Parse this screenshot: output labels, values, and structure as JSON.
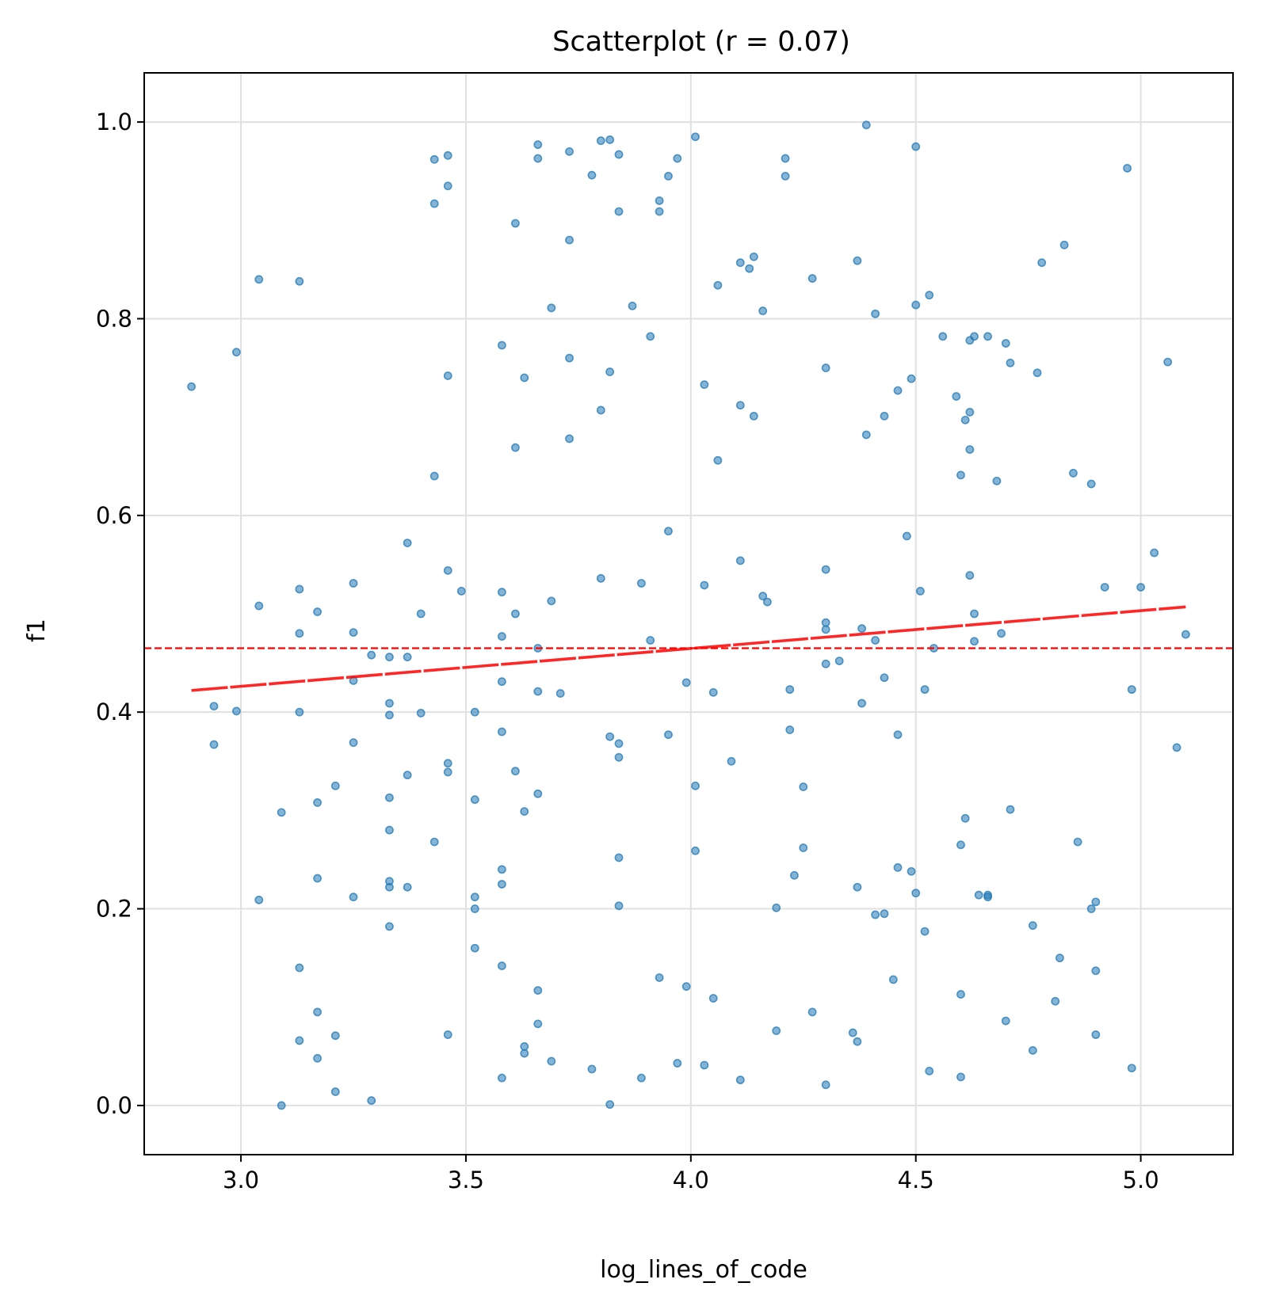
{
  "chart_data": {
    "type": "scatter",
    "title": "Scatterplot (r = 0.07)",
    "xlabel": "log_lines_of_code",
    "ylabel": "f1",
    "xlim": [
      2.785,
      5.205
    ],
    "ylim": [
      -0.05,
      1.05
    ],
    "xticks": [
      3.0,
      3.5,
      4.0,
      4.5,
      5.0
    ],
    "xtick_labels": [
      "3.0",
      "3.5",
      "4.0",
      "4.5",
      "5.0"
    ],
    "yticks": [
      0.0,
      0.2,
      0.4,
      0.6,
      0.8,
      1.0
    ],
    "ytick_labels": [
      "0.0",
      "0.2",
      "0.4",
      "0.6",
      "0.8",
      "1.0"
    ],
    "grid": true,
    "colors": {
      "points": "#1f77b4",
      "reference": "#ff0000",
      "axes": "#000000",
      "grid": "#e0e0e0"
    },
    "reference_lines": [
      {
        "kind": "horizontal_dashed",
        "y": 0.465
      }
    ],
    "trend_line": {
      "x": [
        2.89,
        5.1
      ],
      "y": [
        0.422,
        0.507
      ]
    },
    "points": [
      [
        2.89,
        0.731
      ],
      [
        2.94,
        0.406
      ],
      [
        2.94,
        0.367
      ],
      [
        2.99,
        0.766
      ],
      [
        2.99,
        0.401
      ],
      [
        3.04,
        0.84
      ],
      [
        3.04,
        0.508
      ],
      [
        3.04,
        0.209
      ],
      [
        3.09,
        0.298
      ],
      [
        3.09,
        0.0
      ],
      [
        3.13,
        0.838
      ],
      [
        3.13,
        0.525
      ],
      [
        3.13,
        0.48
      ],
      [
        3.13,
        0.4
      ],
      [
        3.13,
        0.14
      ],
      [
        3.13,
        0.066
      ],
      [
        3.17,
        0.502
      ],
      [
        3.17,
        0.308
      ],
      [
        3.17,
        0.231
      ],
      [
        3.17,
        0.095
      ],
      [
        3.17,
        0.048
      ],
      [
        3.21,
        0.325
      ],
      [
        3.21,
        0.071
      ],
      [
        3.21,
        0.014
      ],
      [
        3.25,
        0.531
      ],
      [
        3.25,
        0.481
      ],
      [
        3.25,
        0.432
      ],
      [
        3.25,
        0.369
      ],
      [
        3.25,
        0.212
      ],
      [
        3.29,
        0.458
      ],
      [
        3.29,
        0.005
      ],
      [
        3.33,
        0.456
      ],
      [
        3.33,
        0.409
      ],
      [
        3.33,
        0.397
      ],
      [
        3.33,
        0.313
      ],
      [
        3.33,
        0.28
      ],
      [
        3.33,
        0.228
      ],
      [
        3.33,
        0.222
      ],
      [
        3.33,
        0.182
      ],
      [
        3.37,
        0.572
      ],
      [
        3.37,
        0.456
      ],
      [
        3.37,
        0.336
      ],
      [
        3.37,
        0.222
      ],
      [
        3.4,
        0.5
      ],
      [
        3.4,
        0.399
      ],
      [
        3.43,
        0.962
      ],
      [
        3.43,
        0.917
      ],
      [
        3.43,
        0.64
      ],
      [
        3.43,
        0.268
      ],
      [
        3.46,
        0.966
      ],
      [
        3.46,
        0.935
      ],
      [
        3.46,
        0.742
      ],
      [
        3.46,
        0.544
      ],
      [
        3.46,
        0.348
      ],
      [
        3.46,
        0.339
      ],
      [
        3.46,
        0.072
      ],
      [
        3.49,
        0.523
      ],
      [
        3.52,
        0.4
      ],
      [
        3.52,
        0.311
      ],
      [
        3.52,
        0.212
      ],
      [
        3.52,
        0.2
      ],
      [
        3.52,
        0.16
      ],
      [
        3.58,
        0.773
      ],
      [
        3.58,
        0.522
      ],
      [
        3.58,
        0.477
      ],
      [
        3.58,
        0.431
      ],
      [
        3.58,
        0.38
      ],
      [
        3.58,
        0.24
      ],
      [
        3.58,
        0.225
      ],
      [
        3.58,
        0.142
      ],
      [
        3.58,
        0.028
      ],
      [
        3.61,
        0.897
      ],
      [
        3.61,
        0.669
      ],
      [
        3.61,
        0.5
      ],
      [
        3.61,
        0.34
      ],
      [
        3.63,
        0.74
      ],
      [
        3.63,
        0.299
      ],
      [
        3.63,
        0.06
      ],
      [
        3.63,
        0.053
      ],
      [
        3.66,
        0.977
      ],
      [
        3.66,
        0.963
      ],
      [
        3.66,
        0.465
      ],
      [
        3.66,
        0.421
      ],
      [
        3.66,
        0.317
      ],
      [
        3.66,
        0.117
      ],
      [
        3.66,
        0.083
      ],
      [
        3.69,
        0.811
      ],
      [
        3.69,
        0.513
      ],
      [
        3.69,
        0.045
      ],
      [
        3.71,
        0.419
      ],
      [
        3.73,
        0.97
      ],
      [
        3.73,
        0.88
      ],
      [
        3.73,
        0.76
      ],
      [
        3.73,
        0.678
      ],
      [
        3.78,
        0.946
      ],
      [
        3.78,
        0.037
      ],
      [
        3.8,
        0.981
      ],
      [
        3.8,
        0.707
      ],
      [
        3.8,
        0.536
      ],
      [
        3.82,
        0.982
      ],
      [
        3.82,
        0.746
      ],
      [
        3.82,
        0.375
      ],
      [
        3.82,
        0.001
      ],
      [
        3.84,
        0.967
      ],
      [
        3.84,
        0.909
      ],
      [
        3.84,
        0.368
      ],
      [
        3.84,
        0.354
      ],
      [
        3.84,
        0.252
      ],
      [
        3.84,
        0.203
      ],
      [
        3.87,
        0.813
      ],
      [
        3.89,
        0.531
      ],
      [
        3.89,
        0.028
      ],
      [
        3.91,
        0.782
      ],
      [
        3.91,
        0.473
      ],
      [
        3.93,
        0.92
      ],
      [
        3.93,
        0.909
      ],
      [
        3.93,
        0.13
      ],
      [
        3.95,
        0.945
      ],
      [
        3.95,
        0.584
      ],
      [
        3.95,
        0.377
      ],
      [
        3.97,
        0.963
      ],
      [
        3.97,
        0.043
      ],
      [
        3.99,
        0.43
      ],
      [
        3.99,
        0.121
      ],
      [
        4.01,
        0.985
      ],
      [
        4.01,
        0.325
      ],
      [
        4.01,
        0.259
      ],
      [
        4.03,
        0.733
      ],
      [
        4.03,
        0.529
      ],
      [
        4.03,
        0.041
      ],
      [
        4.05,
        0.42
      ],
      [
        4.05,
        0.109
      ],
      [
        4.06,
        0.834
      ],
      [
        4.06,
        0.656
      ],
      [
        4.09,
        0.35
      ],
      [
        4.11,
        0.857
      ],
      [
        4.11,
        0.712
      ],
      [
        4.11,
        0.554
      ],
      [
        4.11,
        0.026
      ],
      [
        4.13,
        0.851
      ],
      [
        4.14,
        0.863
      ],
      [
        4.14,
        0.701
      ],
      [
        4.16,
        0.808
      ],
      [
        4.16,
        0.518
      ],
      [
        4.17,
        0.512
      ],
      [
        4.19,
        0.201
      ],
      [
        4.19,
        0.076
      ],
      [
        4.21,
        0.963
      ],
      [
        4.21,
        0.945
      ],
      [
        4.22,
        0.423
      ],
      [
        4.22,
        0.382
      ],
      [
        4.23,
        0.234
      ],
      [
        4.25,
        0.324
      ],
      [
        4.25,
        0.262
      ],
      [
        4.27,
        0.841
      ],
      [
        4.27,
        0.095
      ],
      [
        4.3,
        0.75
      ],
      [
        4.3,
        0.545
      ],
      [
        4.3,
        0.491
      ],
      [
        4.3,
        0.484
      ],
      [
        4.3,
        0.449
      ],
      [
        4.3,
        0.021
      ],
      [
        4.33,
        0.452
      ],
      [
        4.36,
        0.074
      ],
      [
        4.37,
        0.859
      ],
      [
        4.37,
        0.222
      ],
      [
        4.37,
        0.065
      ],
      [
        4.38,
        0.485
      ],
      [
        4.38,
        0.409
      ],
      [
        4.39,
        0.997
      ],
      [
        4.39,
        0.682
      ],
      [
        4.41,
        0.805
      ],
      [
        4.41,
        0.473
      ],
      [
        4.41,
        0.194
      ],
      [
        4.43,
        0.701
      ],
      [
        4.43,
        0.435
      ],
      [
        4.43,
        0.195
      ],
      [
        4.45,
        0.128
      ],
      [
        4.46,
        0.727
      ],
      [
        4.46,
        0.377
      ],
      [
        4.46,
        0.242
      ],
      [
        4.48,
        0.579
      ],
      [
        4.49,
        0.739
      ],
      [
        4.49,
        0.238
      ],
      [
        4.5,
        0.975
      ],
      [
        4.5,
        0.814
      ],
      [
        4.5,
        0.216
      ],
      [
        4.51,
        0.523
      ],
      [
        4.52,
        0.423
      ],
      [
        4.52,
        0.177
      ],
      [
        4.53,
        0.824
      ],
      [
        4.53,
        0.035
      ],
      [
        4.54,
        0.465
      ],
      [
        4.56,
        0.782
      ],
      [
        4.59,
        0.721
      ],
      [
        4.6,
        0.641
      ],
      [
        4.6,
        0.265
      ],
      [
        4.6,
        0.113
      ],
      [
        4.6,
        0.029
      ],
      [
        4.61,
        0.697
      ],
      [
        4.61,
        0.292
      ],
      [
        4.62,
        0.778
      ],
      [
        4.62,
        0.705
      ],
      [
        4.62,
        0.667
      ],
      [
        4.62,
        0.539
      ],
      [
        4.63,
        0.782
      ],
      [
        4.63,
        0.5
      ],
      [
        4.63,
        0.472
      ],
      [
        4.64,
        0.214
      ],
      [
        4.66,
        0.782
      ],
      [
        4.66,
        0.214
      ],
      [
        4.66,
        0.212
      ],
      [
        4.68,
        0.635
      ],
      [
        4.69,
        0.48
      ],
      [
        4.7,
        0.775
      ],
      [
        4.7,
        0.086
      ],
      [
        4.71,
        0.755
      ],
      [
        4.71,
        0.301
      ],
      [
        4.76,
        0.183
      ],
      [
        4.76,
        0.056
      ],
      [
        4.77,
        0.745
      ],
      [
        4.78,
        0.857
      ],
      [
        4.81,
        0.106
      ],
      [
        4.82,
        0.15
      ],
      [
        4.83,
        0.875
      ],
      [
        4.85,
        0.643
      ],
      [
        4.86,
        0.268
      ],
      [
        4.89,
        0.632
      ],
      [
        4.89,
        0.2
      ],
      [
        4.9,
        0.207
      ],
      [
        4.9,
        0.137
      ],
      [
        4.9,
        0.072
      ],
      [
        4.92,
        0.527
      ],
      [
        4.97,
        0.953
      ],
      [
        4.98,
        0.423
      ],
      [
        4.98,
        0.038
      ],
      [
        5.0,
        0.527
      ],
      [
        5.03,
        0.562
      ],
      [
        5.06,
        0.756
      ],
      [
        5.08,
        0.364
      ],
      [
        5.1,
        0.479
      ]
    ]
  }
}
